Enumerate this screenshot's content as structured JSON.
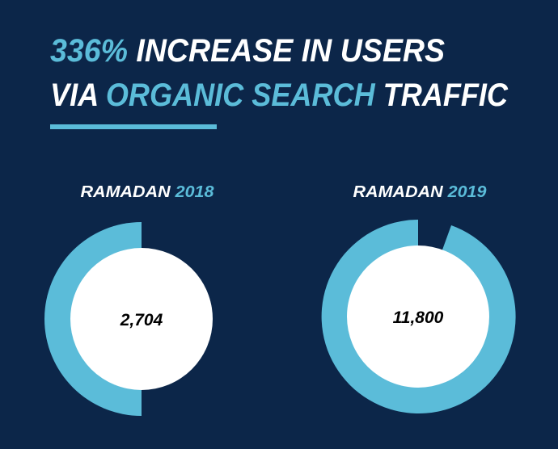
{
  "title": {
    "line1_highlight": "336%",
    "line1_rest": "INCREASE IN USERS",
    "line2_start": "VIA",
    "line2_highlight": "ORGANIC SEARCH",
    "line2_end": "TRAFFIC"
  },
  "panels": [
    {
      "label": "RAMADAN",
      "year": "2018",
      "value": "2,704"
    },
    {
      "label": "RAMADAN",
      "year": "2019",
      "value": "11,800"
    }
  ]
}
